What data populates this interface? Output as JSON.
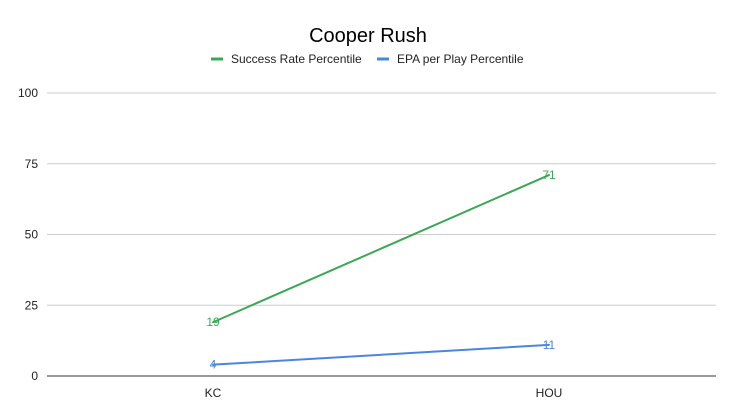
{
  "chart_data": {
    "type": "line",
    "title": "Cooper Rush",
    "xlabel": "",
    "ylabel": "",
    "categories": [
      "KC",
      "HOU"
    ],
    "ylim": [
      0,
      100
    ],
    "yticks": [
      0,
      25,
      50,
      75,
      100
    ],
    "grid": true,
    "legend_position": "top",
    "series": [
      {
        "name": "Success Rate Percentile",
        "color": "#3ba853",
        "values": [
          19,
          71
        ],
        "labels": [
          "19",
          "71"
        ]
      },
      {
        "name": "EPA per Play Percentile",
        "color": "#4a86e0",
        "values": [
          4,
          11
        ],
        "labels": [
          "4",
          "11"
        ]
      }
    ]
  }
}
